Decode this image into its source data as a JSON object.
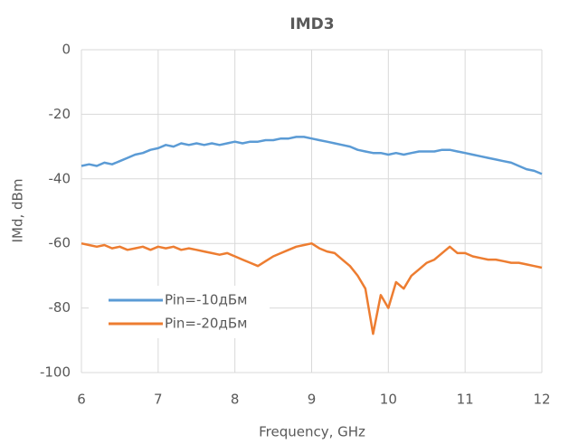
{
  "chart_data": {
    "type": "line",
    "title": "IMD3",
    "x_label": "Frequency, GHz",
    "y_label": "IMd, dBm",
    "x": [
      6.0,
      6.1,
      6.2,
      6.3,
      6.4,
      6.5,
      6.6,
      6.7,
      6.8,
      6.9,
      7.0,
      7.1,
      7.2,
      7.3,
      7.4,
      7.5,
      7.6,
      7.7,
      7.8,
      7.9,
      8.0,
      8.1,
      8.2,
      8.3,
      8.4,
      8.5,
      8.6,
      8.7,
      8.8,
      8.9,
      9.0,
      9.1,
      9.2,
      9.3,
      9.4,
      9.5,
      9.6,
      9.7,
      9.8,
      9.9,
      10.0,
      10.1,
      10.2,
      10.3,
      10.4,
      10.5,
      10.6,
      10.7,
      10.8,
      10.9,
      11.0,
      11.1,
      11.2,
      11.3,
      11.4,
      11.5,
      11.6,
      11.7,
      11.8,
      11.9,
      12.0
    ],
    "series": [
      {
        "name": "Pin=-10дБм",
        "color": "#5b9bd5",
        "values": [
          -36,
          -35.5,
          -36,
          -35,
          -35.5,
          -34.5,
          -33.5,
          -32.5,
          -32,
          -31,
          -30.5,
          -29.5,
          -30,
          -29,
          -29.5,
          -29,
          -29.5,
          -29,
          -29.5,
          -29,
          -28.5,
          -29,
          -28.5,
          -28.5,
          -28,
          -28,
          -27.5,
          -27.5,
          -27,
          -27,
          -27.5,
          -28,
          -28.5,
          -29,
          -29.5,
          -30,
          -31,
          -31.5,
          -32,
          -32,
          -32.5,
          -32,
          -32.5,
          -32,
          -31.5,
          -31.5,
          -31.5,
          -31,
          -31,
          -31.5,
          -32,
          -32.5,
          -33,
          -33.5,
          -34,
          -34.5,
          -35,
          -36,
          -37,
          -37.5,
          -38.5
        ]
      },
      {
        "name": "Pin=-20дБм",
        "color": "#ed7d31",
        "values": [
          -60,
          -60.5,
          -61,
          -60.5,
          -61.5,
          -61,
          -62,
          -61.5,
          -61,
          -62,
          -61,
          -61.5,
          -61,
          -62,
          -61.5,
          -62,
          -62.5,
          -63,
          -63.5,
          -63,
          -64,
          -65,
          -66,
          -67,
          -65.5,
          -64,
          -63,
          -62,
          -61,
          -60.5,
          -60,
          -61.5,
          -62.5,
          -63,
          -65,
          -67,
          -70,
          -74,
          -88,
          -76,
          -80,
          -72,
          -74,
          -70,
          -68,
          -66,
          -65,
          -63,
          -61,
          -63,
          -63,
          -64,
          -64.5,
          -65,
          -65,
          -65.5,
          -66,
          -66,
          -66.5,
          -67,
          -67.5
        ]
      }
    ],
    "xlim": [
      6,
      12
    ],
    "xticks": [
      6,
      7,
      8,
      9,
      10,
      11,
      12
    ],
    "ylim": [
      -100,
      0
    ],
    "yticks": [
      -100,
      -80,
      -60,
      -40,
      -20,
      0
    ],
    "grid": true,
    "legend": "lower left"
  }
}
